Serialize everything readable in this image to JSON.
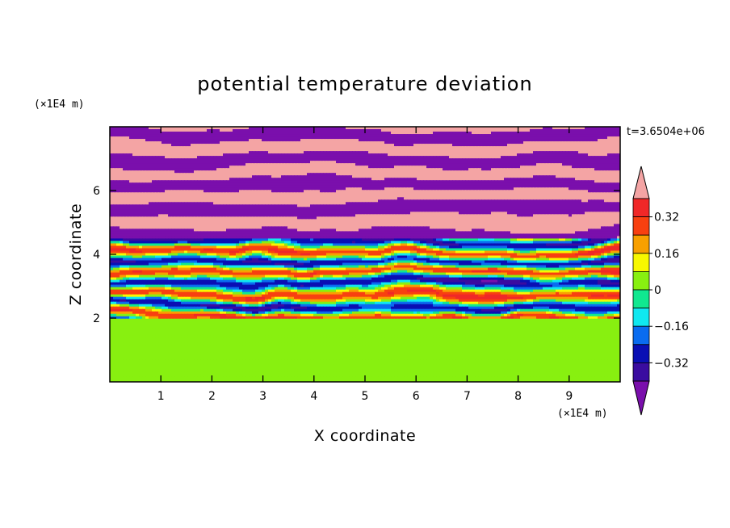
{
  "chart_data": {
    "type": "heatmap",
    "title": "potential temperature deviation",
    "xlabel": "X coordinate",
    "ylabel": "Z coordinate",
    "x_unit": "(×1E4 m)",
    "y_unit": "(×1E4 m)",
    "time_label": "t=3.6504e+06",
    "xlim": [
      0,
      10
    ],
    "ylim": [
      0,
      8
    ],
    "x_ticks": [
      1,
      2,
      3,
      4,
      5,
      6,
      7,
      8,
      9
    ],
    "y_ticks": [
      2,
      4,
      6
    ],
    "colorbar": {
      "levels": [
        -0.4,
        -0.32,
        -0.24,
        -0.16,
        -0.08,
        0,
        0.08,
        0.16,
        0.24,
        0.32,
        0.4
      ],
      "tick_labels": [
        "0.32",
        "0.16",
        "0",
        "−0.16",
        "−0.32"
      ],
      "tick_values": [
        0.32,
        0.16,
        0,
        -0.16,
        -0.32
      ],
      "colors": [
        "#7a0fac",
        "#3a0ca0",
        "#0a0fb4",
        "#0a6cf0",
        "#10e8f0",
        "#10e890",
        "#88f010",
        "#f8f800",
        "#f8a000",
        "#f84010",
        "#f02828",
        "#f4a4a4"
      ],
      "extend": "both"
    },
    "bands_description_z": [
      {
        "z_range": [
          0,
          2
        ],
        "dominant": "green mix 0 to 0.08"
      },
      {
        "z_range": [
          2,
          4.5
        ],
        "dominant": "mixed full spectrum stripes"
      },
      {
        "z_range": [
          4.5,
          8
        ],
        "dominant": "alternating purple and pink layers"
      }
    ]
  },
  "colors": {
    "axis": "#000000",
    "background": "#ffffff"
  }
}
